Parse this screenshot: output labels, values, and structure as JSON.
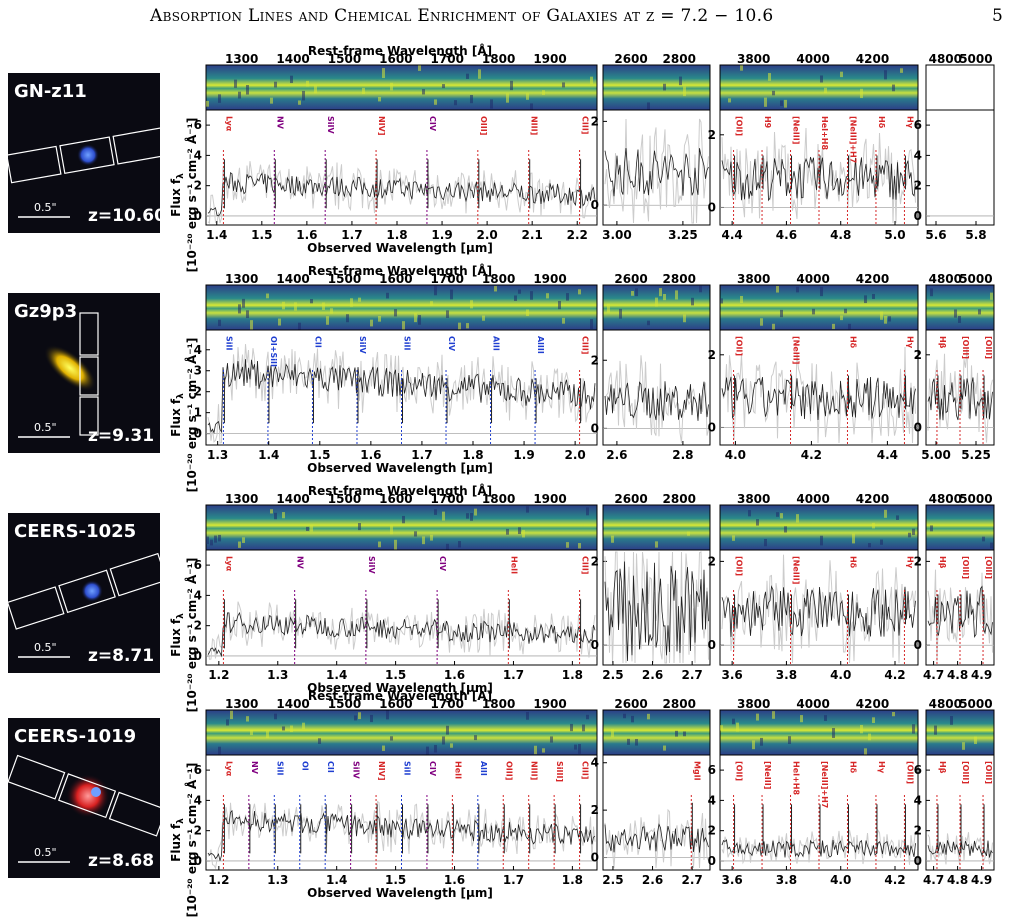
{
  "header": {
    "title": "Absorption Lines and Chemical Enrichment of Galaxies at z = 7.2 − 10.6",
    "page_number": "5"
  },
  "figure": {
    "rest_axis_label": "Rest-frame Wavelength [Å]",
    "rest_axis_label_alt": "Rest-frame Wavelength [A]",
    "obs_axis_label": "Observed Wavelength [μm]",
    "flux_label_line1": "Flux f",
    "flux_label_line1_sub": "λ",
    "flux_label_line2": "[10⁻²⁰ erg s⁻¹ cm⁻² Å⁻¹]",
    "galaxies": [
      {
        "name": "GN-z11",
        "redshift": "z=10.60",
        "scale": "0.5\"",
        "rest_label_key": "rest_axis_label",
        "panels": [
          {
            "rest_ticks": [
              "1300",
              "1400",
              "1500",
              "1600",
              "1700",
              "1800",
              "1900"
            ],
            "obs_ticks": [
              "1.4",
              "1.5",
              "1.6",
              "1.7",
              "1.8",
              "1.9",
              "2.0",
              "2.1",
              "2.2"
            ],
            "y_ticks": [
              "0",
              "2",
              "4",
              "6"
            ],
            "y_max": 6.8,
            "lines": [
              {
                "label": "Lyα",
                "color": "#d62728"
              },
              {
                "label": "NV",
                "color": "#800080"
              },
              {
                "label": "SiIV",
                "color": "#800080"
              },
              {
                "label": "NIV]",
                "color": "#d62728"
              },
              {
                "label": "CIV",
                "color": "#800080"
              },
              {
                "label": "OIII]",
                "color": "#d62728"
              },
              {
                "label": "NIII]",
                "color": "#d62728"
              },
              {
                "label": "CIII]",
                "color": "#d62728"
              }
            ]
          },
          {
            "rest_ticks": [
              "2600",
              "2800"
            ],
            "obs_ticks": [
              "3.00",
              "3.25"
            ],
            "y_ticks": [
              "0",
              "2"
            ],
            "y_max": 2.2,
            "lines": []
          },
          {
            "rest_ticks": [
              "3800",
              "4000",
              "4200"
            ],
            "obs_ticks": [
              "4.4",
              "4.6",
              "4.8",
              "5.0"
            ],
            "y_ticks": [
              "0",
              "2"
            ],
            "y_max": 2.6,
            "lines": [
              {
                "label": "[OII]",
                "color": "#d62728"
              },
              {
                "label": "H9",
                "color": "#d62728"
              },
              {
                "label": "[NeIII]",
                "color": "#d62728"
              },
              {
                "label": "HeI+H8",
                "color": "#d62728"
              },
              {
                "label": "[NeIII]+H7",
                "color": "#d62728"
              },
              {
                "label": "Hδ",
                "color": "#d62728"
              },
              {
                "label": "Hγ",
                "color": "#d62728"
              }
            ]
          },
          {
            "rest_ticks": [
              "4800",
              "5000"
            ],
            "obs_ticks": [
              "5.6",
              "5.8"
            ],
            "y_ticks": [
              "0",
              "2",
              "4",
              "6"
            ],
            "y_max": 6.8,
            "lines": []
          }
        ]
      },
      {
        "name": "Gz9p3",
        "redshift": "z=9.31",
        "scale": "0.5\"",
        "rest_label_key": "rest_axis_label",
        "panels": [
          {
            "rest_ticks": [
              "1300",
              "1400",
              "1500",
              "1600",
              "1700",
              "1800",
              "1900"
            ],
            "obs_ticks": [
              "1.3",
              "1.4",
              "1.5",
              "1.6",
              "1.7",
              "1.8",
              "1.9",
              "2.0"
            ],
            "y_ticks": [
              "0",
              "1",
              "2",
              "3",
              "4"
            ],
            "y_max": 4.8,
            "lines": [
              {
                "label": "SiII",
                "color": "#1f3fd1"
              },
              {
                "label": "OI+SiII",
                "color": "#1f3fd1"
              },
              {
                "label": "CII",
                "color": "#1f3fd1"
              },
              {
                "label": "SiIV",
                "color": "#1f3fd1"
              },
              {
                "label": "SiII",
                "color": "#1f3fd1"
              },
              {
                "label": "CIV",
                "color": "#1f3fd1"
              },
              {
                "label": "AlII",
                "color": "#1f3fd1"
              },
              {
                "label": "AlIII",
                "color": "#1f3fd1"
              },
              {
                "label": "CIII]",
                "color": "#d62728"
              }
            ]
          },
          {
            "rest_ticks": [
              "2600",
              "2800"
            ],
            "obs_ticks": [
              "2.6",
              "2.8"
            ],
            "y_ticks": [
              "0",
              "2"
            ],
            "y_max": 2.8,
            "lines": []
          },
          {
            "rest_ticks": [
              "3800",
              "4000",
              "4200"
            ],
            "obs_ticks": [
              "4.0",
              "4.2",
              "4.4"
            ],
            "y_ticks": [
              "0",
              "2"
            ],
            "y_max": 2.6,
            "lines": [
              {
                "label": "[OII]",
                "color": "#d62728"
              },
              {
                "label": "[NeIII]",
                "color": "#d62728"
              },
              {
                "label": "Hδ",
                "color": "#d62728"
              },
              {
                "label": "Hγ",
                "color": "#d62728"
              }
            ]
          },
          {
            "rest_ticks": [
              "4800",
              "5000"
            ],
            "obs_ticks": [
              "5.00",
              "5.25"
            ],
            "y_ticks": [
              "0",
              "2"
            ],
            "y_max": 2.6,
            "lines": [
              {
                "label": "Hβ",
                "color": "#d62728"
              },
              {
                "label": "[OIII]",
                "color": "#d62728"
              },
              {
                "label": "[OIII]",
                "color": "#d62728"
              }
            ]
          }
        ]
      },
      {
        "name": "CEERS-1025",
        "redshift": "z=8.71",
        "scale": "0.5\"",
        "rest_label_key": "rest_axis_label",
        "panels": [
          {
            "rest_ticks": [
              "1300",
              "1400",
              "1500",
              "1600",
              "1700",
              "1800",
              "1900"
            ],
            "obs_ticks": [
              "1.2",
              "1.3",
              "1.4",
              "1.5",
              "1.6",
              "1.7",
              "1.8"
            ],
            "y_ticks": [
              "0",
              "2",
              "4",
              "6"
            ],
            "y_max": 6.8,
            "lines": [
              {
                "label": "Lyα",
                "color": "#d62728"
              },
              {
                "label": "NV",
                "color": "#800080"
              },
              {
                "label": "SiIV",
                "color": "#800080"
              },
              {
                "label": "CIV",
                "color": "#800080"
              },
              {
                "label": "HeII",
                "color": "#d62728"
              },
              {
                "label": "CIII]",
                "color": "#d62728"
              }
            ]
          },
          {
            "rest_ticks": [
              "2600",
              "2800"
            ],
            "obs_ticks": [
              "2.5",
              "2.6",
              "2.7"
            ],
            "y_ticks": [
              "0",
              "2"
            ],
            "y_max": 2.2,
            "lines": []
          },
          {
            "rest_ticks": [
              "3800",
              "4000",
              "4200"
            ],
            "obs_ticks": [
              "3.6",
              "3.8",
              "4.0",
              "4.2"
            ],
            "y_ticks": [
              "0",
              "2"
            ],
            "y_max": 2.2,
            "lines": [
              {
                "label": "[OII]",
                "color": "#d62728"
              },
              {
                "label": "[NeIII]",
                "color": "#d62728"
              },
              {
                "label": "Hδ",
                "color": "#d62728"
              },
              {
                "label": "Hγ",
                "color": "#d62728"
              }
            ]
          },
          {
            "rest_ticks": [
              "4800",
              "5000"
            ],
            "obs_ticks": [
              "4.7",
              "4.8",
              "4.9"
            ],
            "y_ticks": [
              "0",
              "2"
            ],
            "y_max": 2.2,
            "lines": [
              {
                "label": "Hβ",
                "color": "#d62728"
              },
              {
                "label": "[OIII]",
                "color": "#d62728"
              },
              {
                "label": "[OIII]",
                "color": "#d62728"
              }
            ]
          }
        ]
      },
      {
        "name": "CEERS-1019",
        "redshift": "z=8.68",
        "scale": "0.5\"",
        "rest_label_key": "rest_axis_label_alt",
        "panels": [
          {
            "rest_ticks": [
              "1300",
              "1400",
              "1500",
              "1600",
              "1700",
              "1800",
              "1900"
            ],
            "obs_ticks": [
              "1.2",
              "1.3",
              "1.4",
              "1.5",
              "1.6",
              "1.7",
              "1.8"
            ],
            "y_ticks": [
              "0",
              "2",
              "4",
              "6"
            ],
            "y_max": 6.8,
            "lines": [
              {
                "label": "Lyα",
                "color": "#d62728"
              },
              {
                "label": "NV",
                "color": "#800080"
              },
              {
                "label": "SiII",
                "color": "#1f3fd1"
              },
              {
                "label": "OI",
                "color": "#1f3fd1"
              },
              {
                "label": "CII",
                "color": "#1f3fd1"
              },
              {
                "label": "SiIV",
                "color": "#800080"
              },
              {
                "label": "NIV]",
                "color": "#d62728"
              },
              {
                "label": "SiII",
                "color": "#1f3fd1"
              },
              {
                "label": "CIV",
                "color": "#800080"
              },
              {
                "label": "HeII",
                "color": "#d62728"
              },
              {
                "label": "AlII",
                "color": "#1f3fd1"
              },
              {
                "label": "OIII]",
                "color": "#d62728"
              },
              {
                "label": "NIII]",
                "color": "#d62728"
              },
              {
                "label": "SiIII]",
                "color": "#d62728"
              },
              {
                "label": "CIII]",
                "color": "#d62728"
              }
            ]
          },
          {
            "rest_ticks": [
              "2600",
              "2800"
            ],
            "obs_ticks": [
              "2.5",
              "2.6",
              "2.7"
            ],
            "y_ticks": [
              "0",
              "2",
              "4"
            ],
            "y_max": 4.2,
            "lines": [
              {
                "label": "MgII",
                "color": "#d62728"
              }
            ]
          },
          {
            "rest_ticks": [
              "3800",
              "4000",
              "4200"
            ],
            "obs_ticks": [
              "3.6",
              "3.8",
              "4.0",
              "4.2"
            ],
            "y_ticks": [
              "0",
              "2",
              "4",
              "6"
            ],
            "y_max": 6.8,
            "lines": [
              {
                "label": "[OII]",
                "color": "#d62728"
              },
              {
                "label": "[NeIII]",
                "color": "#d62728"
              },
              {
                "label": "HeI+H8",
                "color": "#d62728"
              },
              {
                "label": "[NeIII]+H7",
                "color": "#d62728"
              },
              {
                "label": "Hδ",
                "color": "#d62728"
              },
              {
                "label": "Hγ",
                "color": "#d62728"
              },
              {
                "label": "[OIII]",
                "color": "#d62728"
              }
            ]
          },
          {
            "rest_ticks": [
              "4800",
              "5000"
            ],
            "obs_ticks": [
              "4.7",
              "4.8",
              "4.9"
            ],
            "y_ticks": [
              "0",
              "2",
              "4",
              "6"
            ],
            "y_max": 6.8,
            "lines": [
              {
                "label": "Hβ",
                "color": "#d62728"
              },
              {
                "label": "[OIII]",
                "color": "#d62728"
              },
              {
                "label": "[OIII]",
                "color": "#d62728"
              }
            ]
          }
        ]
      }
    ]
  }
}
